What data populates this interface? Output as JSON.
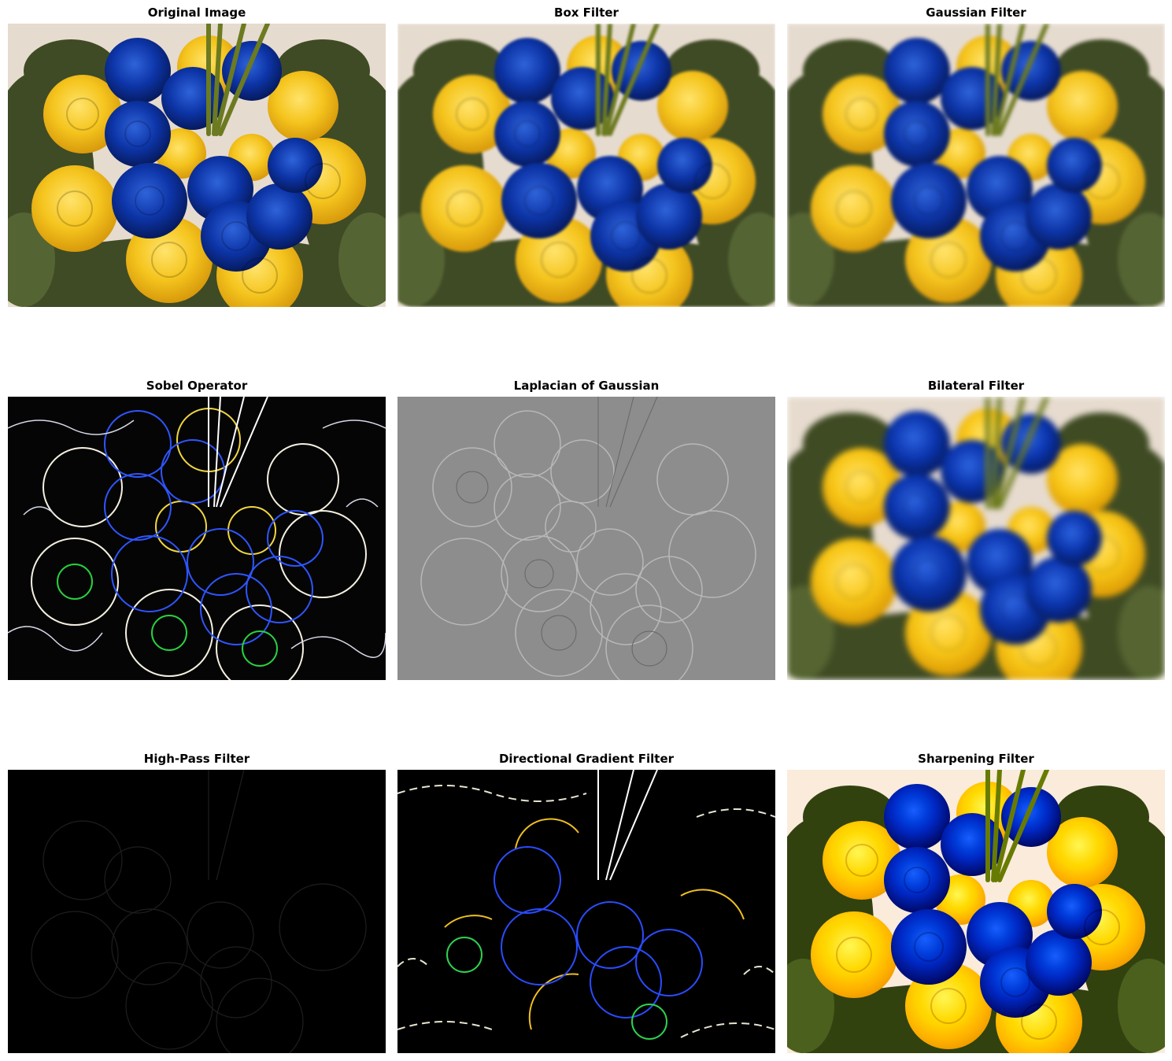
{
  "panels": [
    {
      "title": "Original Image",
      "icon": "bouquet-photo"
    },
    {
      "title": "Box Filter",
      "icon": "bouquet-photo-blurred"
    },
    {
      "title": "Gaussian Filter",
      "icon": "bouquet-photo-gaussian"
    },
    {
      "title": "Sobel Operator",
      "icon": "bouquet-edges-sobel"
    },
    {
      "title": "Laplacian of Gaussian",
      "icon": "bouquet-edges-log"
    },
    {
      "title": "Bilateral Filter",
      "icon": "bouquet-photo-bilateral"
    },
    {
      "title": "High-Pass Filter",
      "icon": "bouquet-highpass"
    },
    {
      "title": "Directional Gradient Filter",
      "icon": "bouquet-gradient"
    },
    {
      "title": "Sharpening Filter",
      "icon": "bouquet-photo-sharpened"
    }
  ],
  "colors": {
    "background": "#e3d8cb",
    "fern": "#3d4a24",
    "blue_rose": "#0b2e9a",
    "yellow_rose": "#f3c21a",
    "stem": "#6b7a1e"
  }
}
